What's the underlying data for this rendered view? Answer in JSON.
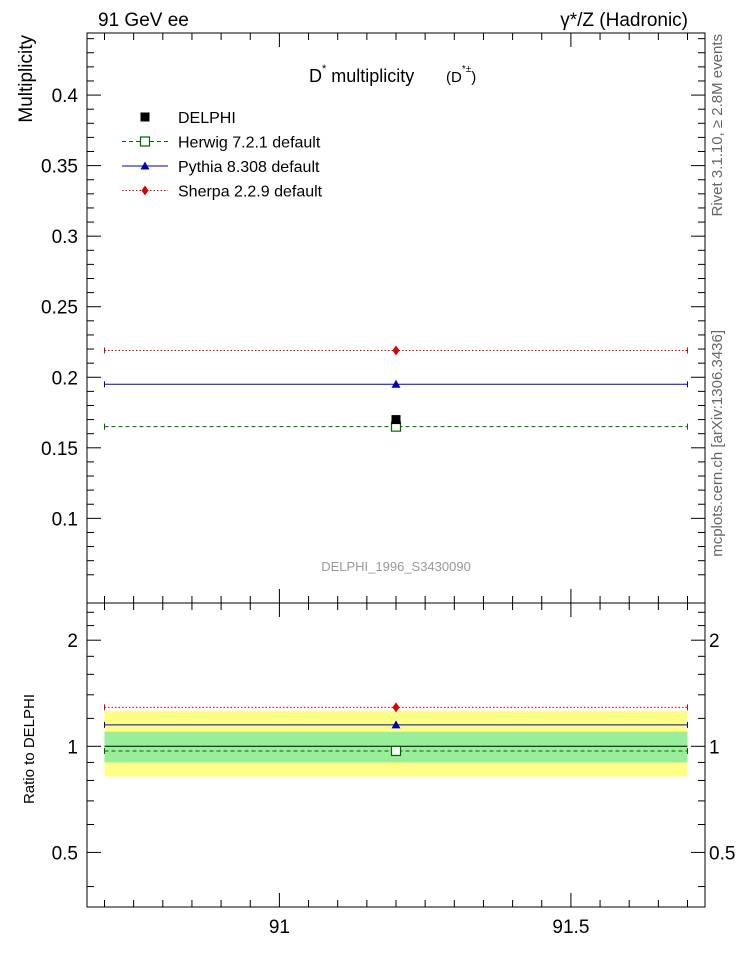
{
  "header": {
    "left": "91 GeV ee",
    "right": "γ*/Z (Hadronic)"
  },
  "side_labels": {
    "top": "Rivet 3.1.10, ≥ 2.8M events",
    "bottom": "mcplots.cern.ch [arXiv:1306.3436]"
  },
  "chart_data": [
    {
      "panel": "main",
      "type": "scatter",
      "title_main": "D",
      "title_sup": "*",
      "title_rest": " multiplicity",
      "title_paren_open": "(D",
      "title_paren_sup": "*±",
      "title_paren_close": ")",
      "ylabel": "Multiplicity",
      "watermark": "DELPHI_1996_S3430090",
      "xlim": [
        90.67,
        91.73
      ],
      "ylim": [
        0.04,
        0.444
      ],
      "yticks": [
        0.1,
        0.15,
        0.2,
        0.25,
        0.3,
        0.35,
        0.4
      ],
      "ytick_labels": [
        "0.1",
        "0.15",
        "0.2",
        "0.25",
        "0.3",
        "0.35",
        "0.4"
      ],
      "legend_position": "top-left",
      "series": [
        {
          "name": "DELPHI",
          "kind": "data",
          "x": 91.2,
          "y": 0.17,
          "color": "#000000",
          "marker": "square"
        },
        {
          "name": "Herwig 7.2.1 default",
          "kind": "mc",
          "x": 91.2,
          "y": 0.165,
          "xrange": [
            90.7,
            91.7
          ],
          "color": "#006600",
          "linestyle": "dashed",
          "marker": "open-square"
        },
        {
          "name": "Pythia 8.308 default",
          "kind": "mc",
          "x": 91.2,
          "y": 0.195,
          "xrange": [
            90.7,
            91.7
          ],
          "color": "#0000bb",
          "linestyle": "solid",
          "marker": "triangle"
        },
        {
          "name": "Sherpa 2.2.9 default",
          "kind": "mc",
          "x": 91.2,
          "y": 0.219,
          "xrange": [
            90.7,
            91.7
          ],
          "color": "#dd0000",
          "linestyle": "dotted",
          "marker": "diamond"
        }
      ]
    },
    {
      "panel": "ratio",
      "type": "scatter",
      "ylabel": "Ratio to DELPHI",
      "ylim": [
        0.35,
        2.55
      ],
      "log_y": true,
      "yticks": [
        0.5,
        1,
        2
      ],
      "ytick_labels": [
        "0.5",
        "1",
        "2"
      ],
      "xlim": [
        90.67,
        91.73
      ],
      "xticks": [
        91,
        91.5
      ],
      "xtick_labels": [
        "91",
        "91.5"
      ],
      "bands": [
        {
          "kind": "total-uncertainty",
          "low": 0.82,
          "high": 1.26,
          "color": "#ffff88"
        },
        {
          "kind": "stat-uncertainty",
          "low": 0.9,
          "high": 1.1,
          "color": "#99ee99"
        }
      ],
      "series": [
        {
          "name": "DELPHI",
          "y": 1.0,
          "color": "#000000"
        },
        {
          "name": "Herwig 7.2.1 default",
          "y": 0.97,
          "color": "#006600",
          "linestyle": "dashed",
          "marker": "open-square"
        },
        {
          "name": "Pythia 8.308 default",
          "y": 1.15,
          "color": "#0000bb",
          "linestyle": "solid",
          "marker": "triangle"
        },
        {
          "name": "Sherpa 2.2.9 default",
          "y": 1.29,
          "color": "#dd0000",
          "linestyle": "dotted",
          "marker": "diamond"
        }
      ]
    }
  ]
}
